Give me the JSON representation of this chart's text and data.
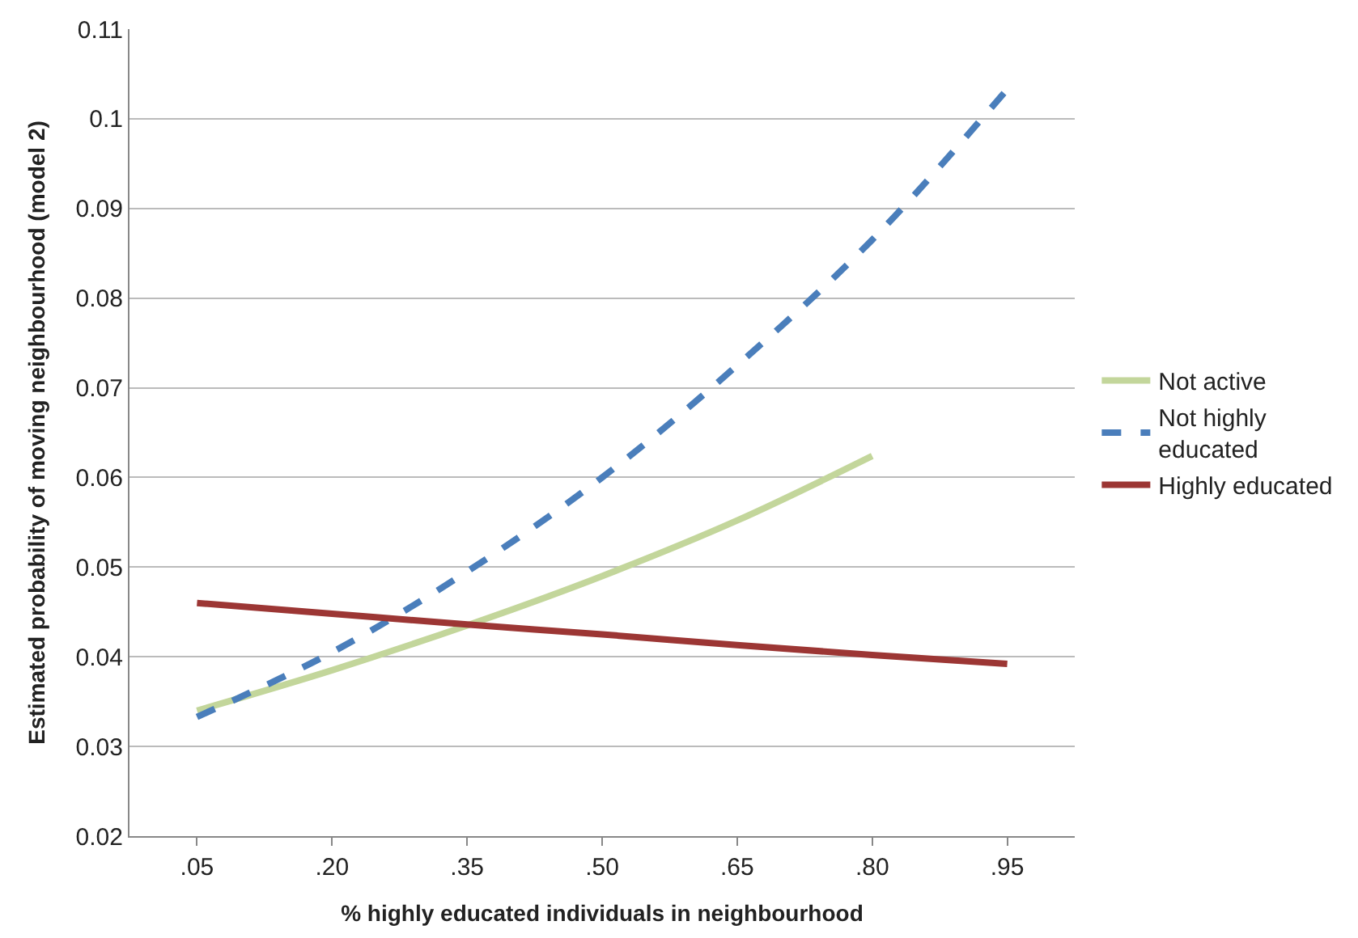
{
  "chart_data": {
    "type": "line",
    "xlabel": "% highly educated individuals in neighbourhood",
    "ylabel": "Estimated probability of moving neighbourhood (model 2)",
    "categories": [
      ".05",
      ".20",
      ".35",
      ".50",
      ".65",
      ".80",
      ".95"
    ],
    "ylim": [
      0.02,
      0.11
    ],
    "yticks": [
      0.02,
      0.03,
      0.04,
      0.05,
      0.06,
      0.07,
      0.08,
      0.09,
      0.1,
      0.11
    ],
    "grid": "y",
    "legend": "right",
    "marker": "none",
    "series": [
      {
        "name": "Not active",
        "color": "#c3d69b",
        "line_style": "solid",
        "values": [
          0.034,
          0.0385,
          0.0435,
          0.049,
          0.0552,
          0.0624,
          null
        ]
      },
      {
        "name": "Not highly educated",
        "color": "#4a7ebb",
        "line_style": "dashed",
        "values": [
          0.0333,
          0.0405,
          0.0495,
          0.06,
          0.0725,
          0.0865,
          0.1033
        ]
      },
      {
        "name": "Highly educated",
        "color": "#9c3634",
        "line_style": "solid",
        "values": [
          0.046,
          0.0448,
          0.0436,
          0.0425,
          0.0413,
          0.0402,
          0.0392
        ]
      }
    ]
  }
}
